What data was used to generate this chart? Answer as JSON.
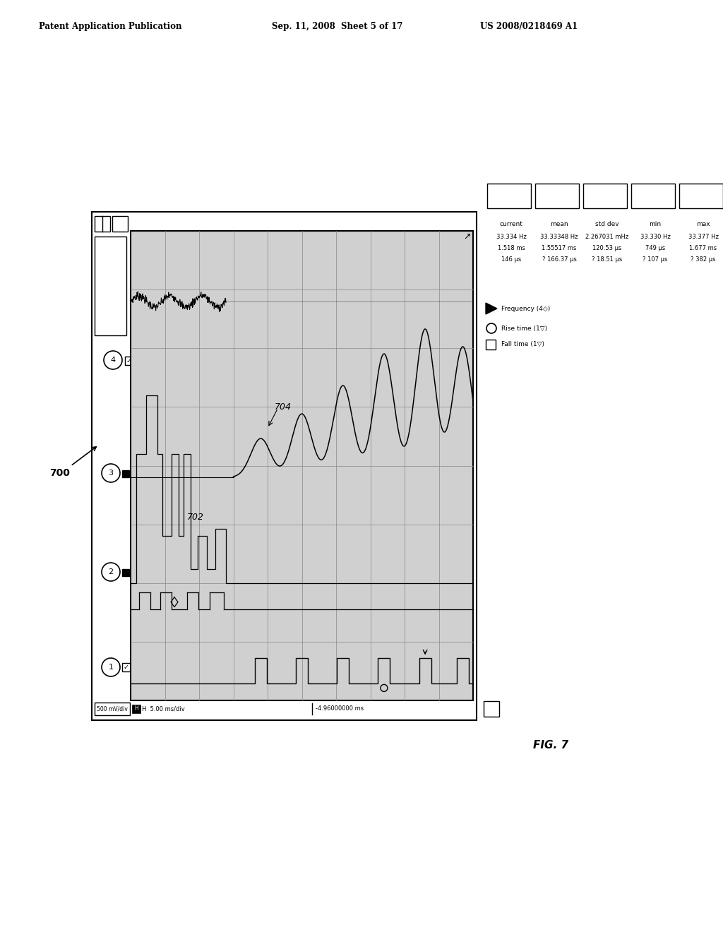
{
  "bg_color": "#ffffff",
  "header_left": "Patent Application Publication",
  "header_center": "Sep. 11, 2008  Sheet 5 of 17",
  "header_right": "US 2008/0218469 A1",
  "fig_label": "FIG. 7",
  "label_700": "700",
  "label_702": "702",
  "label_704": "704",
  "scope_bg": "#d0d0d0",
  "grid_color": "#999999",
  "bottom_bar_center": "H  5.00 ms/div",
  "bottom_bar_right": "-4.96000000 ms",
  "stats_current_label": "current",
  "stats_current_freq": "33.334 Hz",
  "stats_current_ms": "1.518 ms",
  "stats_current_us": "146 μs",
  "stats_mean_label": "mean",
  "stats_mean_freq": "33.33348 Hz",
  "stats_mean_ms": "1.55517 ms",
  "stats_mean_us": "? 166.37 μs",
  "stats_stddev_label": "std dev",
  "stats_stddev_mhz": "2.267031 mHz",
  "stats_stddev_us": "120.53 μs",
  "stats_stddev_us2": "? 18.51 μs",
  "stats_min_label": "min",
  "stats_min_freq": "33.330 Hz",
  "stats_min_us": "749 μs",
  "stats_min_us2": "? 107 μs",
  "stats_max_label": "max",
  "stats_max_freq": "33.377 Hz",
  "stats_max_ms": "1.677 ms",
  "stats_max_us": "? 382 μs",
  "meas_labels": [
    "Frequency (4◇)",
    "Rise time (1▽)",
    "Fall time (1▽)"
  ]
}
